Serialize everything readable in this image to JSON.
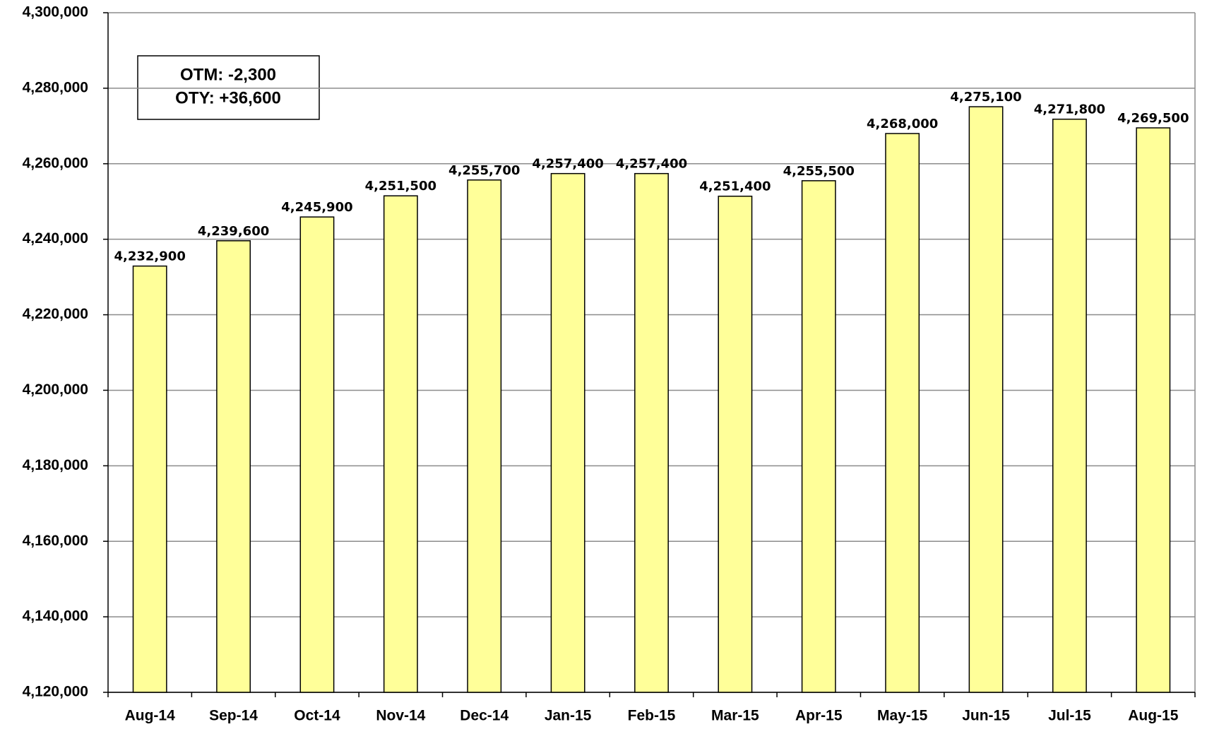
{
  "chart_data": {
    "type": "bar",
    "categories": [
      "Aug-14",
      "Sep-14",
      "Oct-14",
      "Nov-14",
      "Dec-14",
      "Jan-15",
      "Feb-15",
      "Mar-15",
      "Apr-15",
      "May-15",
      "Jun-15",
      "Jul-15",
      "Aug-15"
    ],
    "values": [
      4232900,
      4239600,
      4245900,
      4251500,
      4255700,
      4257400,
      4257400,
      4251400,
      4255500,
      4268000,
      4275100,
      4271800,
      4269500
    ],
    "value_labels": [
      "4,232,900",
      "4,239,600",
      "4,245,900",
      "4,251,500",
      "4,255,700",
      "4,257,400",
      "4,257,400",
      "4,251,400",
      "4,255,500",
      "4,268,000",
      "4,275,100",
      "4,271,800",
      "4,269,500"
    ],
    "color": "#ffff99",
    "ylim": [
      4120000,
      4300000
    ],
    "yticks": [
      {
        "value": 4120000,
        "label": "4,120,000"
      },
      {
        "value": 4140000,
        "label": "4,140,000"
      },
      {
        "value": 4160000,
        "label": "4,160,000"
      },
      {
        "value": 4180000,
        "label": "4,180,000"
      },
      {
        "value": 4200000,
        "label": "4,200,000"
      },
      {
        "value": 4220000,
        "label": "4,220,000"
      },
      {
        "value": 4240000,
        "label": "4,240,000"
      },
      {
        "value": 4260000,
        "label": "4,260,000"
      },
      {
        "value": 4280000,
        "label": "4,280,000"
      },
      {
        "value": 4300000,
        "label": "4,300,000"
      }
    ],
    "grid": true,
    "annotations": [
      "OTM: -2,300",
      "OTY: +36,600"
    ]
  }
}
